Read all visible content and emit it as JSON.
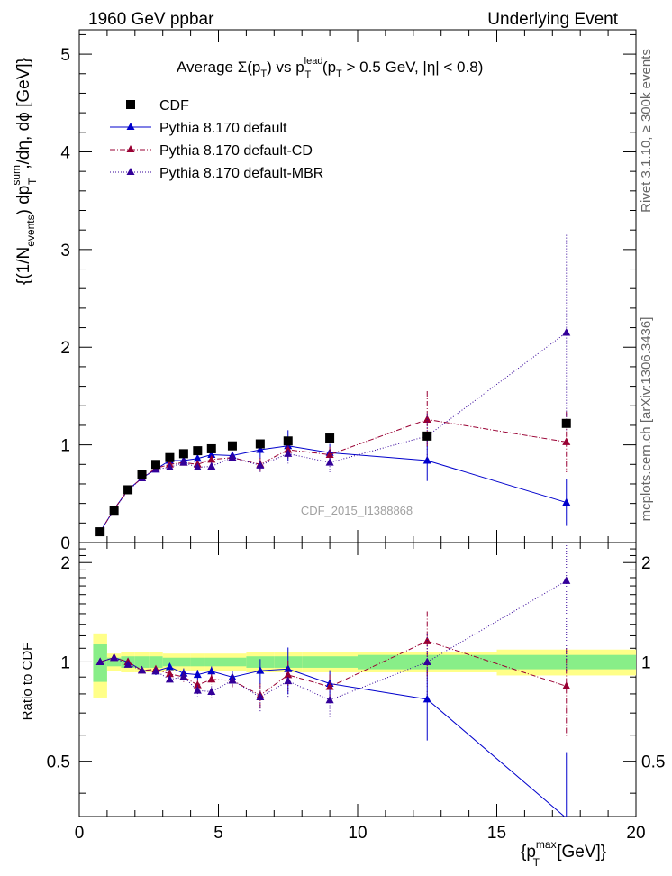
{
  "header": {
    "energy_label": "1960 GeV ppbar",
    "process_label": "Underlying Event",
    "side_label_version": "Rivet 3.1.10, ≥ 300k events",
    "side_label_source": "mcplots.cern.ch [arXiv:1306.3436]",
    "analysis_label": "CDF_2015_I1388868"
  },
  "main_panel": {
    "title": {
      "prefix": "Average Σ(p",
      "sub1": "T",
      "mid": ") vs p",
      "sup": "lead",
      "sub2": "T",
      "cut_open": " (p",
      "sub3": "T",
      "cut_rest": " > 0.5 GeV, |η| < 0.8)"
    },
    "ylabel": {
      "part1": "{(1/N",
      "sub_events": "events",
      "part2": ") dp",
      "sup_sum": "sum",
      "sub_T": "T",
      "part3": ",/dη, dϕ [GeV]}"
    },
    "y_ticks": [
      "0",
      "1",
      "2",
      "3",
      "4",
      "5"
    ],
    "ylim": [
      0,
      5.25
    ]
  },
  "ratio_panel": {
    "ylabel": "Ratio to CDF",
    "y_ticks": [
      "0.5",
      "1",
      "2"
    ],
    "ylim": [
      0.34,
      2.3
    ]
  },
  "x_axis": {
    "label_base": "{p",
    "label_sup": "max",
    "label_sub": "T",
    "label_rest": " [GeV]}",
    "ticks": [
      "0",
      "5",
      "10",
      "15",
      "20"
    ],
    "xlim": [
      0,
      20
    ]
  },
  "legend": [
    {
      "label": "CDF",
      "marker": "square",
      "color": "#000000",
      "line": "none"
    },
    {
      "label": "Pythia 8.170 default",
      "marker": "triangle",
      "color": "#0000cc",
      "line": "solid"
    },
    {
      "label": "Pythia 8.170 default-CD",
      "marker": "triangle",
      "color": "#990033",
      "line": "dashdot"
    },
    {
      "label": "Pythia 8.170 default-MBR",
      "marker": "triangle",
      "color": "#330099",
      "line": "dotted"
    }
  ],
  "chart_data": {
    "type": "scatter",
    "title": "Average Σ(pT) vs pT lead (pT > 0.5 GeV, |η| < 0.8)",
    "xlabel": "{pT max [GeV]}",
    "ylabel": "{(1/Nevents) dpT sum,/dη, dϕ [GeV]}",
    "xlim": [
      0,
      20
    ],
    "ylim": [
      0,
      5.25
    ],
    "ratio_ylim": [
      0.34,
      2.3
    ],
    "legend_position": "top-left",
    "data": {
      "x": [
        0.75,
        1.25,
        1.75,
        2.25,
        2.75,
        3.25,
        3.75,
        4.25,
        4.75,
        5.5,
        6.5,
        7.5,
        9.0,
        12.5,
        17.5
      ],
      "xerr": [
        0.25,
        0.25,
        0.25,
        0.25,
        0.25,
        0.25,
        0.25,
        0.25,
        0.25,
        0.5,
        0.5,
        0.5,
        1.0,
        2.5,
        2.5
      ],
      "y": [
        0.11,
        0.33,
        0.54,
        0.7,
        0.8,
        0.87,
        0.91,
        0.94,
        0.96,
        0.99,
        1.01,
        1.04,
        1.07,
        1.09,
        1.22
      ],
      "rel_err_stat": [
        0.13,
        0.03,
        0.04,
        0.04,
        0.04,
        0.03,
        0.03,
        0.03,
        0.03,
        0.03,
        0.04,
        0.04,
        0.04,
        0.05,
        0.05
      ],
      "rel_err_total": [
        0.22,
        0.06,
        0.07,
        0.07,
        0.07,
        0.06,
        0.06,
        0.06,
        0.06,
        0.06,
        0.07,
        0.07,
        0.07,
        0.07,
        0.09
      ]
    },
    "series": [
      {
        "name": "Pythia 8.170 default",
        "color": "#0000cc",
        "line": "solid",
        "x": [
          0.75,
          1.25,
          1.75,
          2.25,
          2.75,
          3.25,
          3.75,
          4.25,
          4.75,
          5.5,
          6.5,
          7.5,
          9.0,
          12.5,
          17.5
        ],
        "y": [
          0.11,
          0.34,
          0.54,
          0.66,
          0.75,
          0.84,
          0.84,
          0.86,
          0.9,
          0.89,
          0.95,
          0.99,
          0.92,
          0.84,
          0.41
        ],
        "yerr": [
          0,
          0,
          0.01,
          0.01,
          0.02,
          0.02,
          0.03,
          0.03,
          0.03,
          0.04,
          0.08,
          0.16,
          0.09,
          0.21,
          0.24
        ]
      },
      {
        "name": "Pythia 8.170 default-CD",
        "color": "#990033",
        "line": "dashdot",
        "x": [
          0.75,
          1.25,
          1.75,
          2.25,
          2.75,
          3.25,
          3.75,
          4.25,
          4.75,
          5.5,
          6.5,
          7.5,
          9.0,
          12.5,
          17.5
        ],
        "y": [
          0.11,
          0.34,
          0.54,
          0.66,
          0.76,
          0.8,
          0.82,
          0.8,
          0.85,
          0.87,
          0.8,
          0.95,
          0.9,
          1.26,
          1.03
        ],
        "yerr": [
          0,
          0,
          0.01,
          0.01,
          0.02,
          0.02,
          0.03,
          0.03,
          0.03,
          0.04,
          0.07,
          0.1,
          0.08,
          0.29,
          0.31
        ]
      },
      {
        "name": "Pythia 8.170 default-MBR",
        "color": "#330099",
        "line": "dotted",
        "x": [
          0.75,
          1.25,
          1.75,
          2.25,
          2.75,
          3.25,
          3.75,
          4.25,
          4.75,
          5.5,
          6.5,
          7.5,
          9.0,
          12.5,
          17.5
        ],
        "y": [
          0.11,
          0.34,
          0.53,
          0.66,
          0.75,
          0.77,
          0.82,
          0.77,
          0.78,
          0.87,
          0.79,
          0.91,
          0.82,
          1.09,
          2.15
        ],
        "yerr": [
          0,
          0,
          0.01,
          0.01,
          0.02,
          0.02,
          0.03,
          0.03,
          0.03,
          0.04,
          0.08,
          0.1,
          0.1,
          0.23,
          1.0
        ]
      }
    ]
  }
}
